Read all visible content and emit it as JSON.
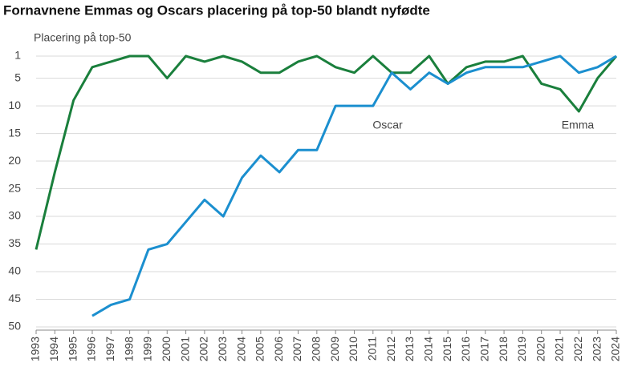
{
  "chart_data": {
    "type": "line",
    "title": "Fornavnene Emmas og Oscars placering på top-50 blandt nyfødte",
    "y_axis_label": "Placering på top-50",
    "x": [
      "1993",
      "1994",
      "1995",
      "1996",
      "1997",
      "1998",
      "1999",
      "2000",
      "2001",
      "2002",
      "2003",
      "2004",
      "2005",
      "2006",
      "2007",
      "2008",
      "2009",
      "2010",
      "2011",
      "2012",
      "2013",
      "2014",
      "2015",
      "2016",
      "2017",
      "2018",
      "2019",
      "2020",
      "2021",
      "2022",
      "2023",
      "2024"
    ],
    "series": [
      {
        "name": "Emma",
        "color": "#1a7f3c",
        "values": [
          36,
          22,
          9,
          3,
          2,
          1,
          1,
          5,
          1,
          2,
          1,
          2,
          4,
          4,
          2,
          1,
          3,
          4,
          1,
          4,
          4,
          1,
          6,
          3,
          2,
          2,
          1,
          6,
          7,
          11,
          5,
          1
        ]
      },
      {
        "name": "Oscar",
        "color": "#1b8fcf",
        "values": [
          null,
          null,
          null,
          48,
          46,
          45,
          36,
          35,
          31,
          27,
          30,
          23,
          19,
          22,
          18,
          18,
          10,
          10,
          10,
          4,
          7,
          4,
          6,
          4,
          3,
          3,
          3,
          2,
          1,
          4,
          3,
          1
        ]
      }
    ],
    "ylim": [
      1,
      50
    ],
    "y_reversed": true,
    "yticks": [
      1,
      5,
      10,
      15,
      20,
      25,
      30,
      35,
      40,
      45,
      50
    ],
    "grid": true
  }
}
